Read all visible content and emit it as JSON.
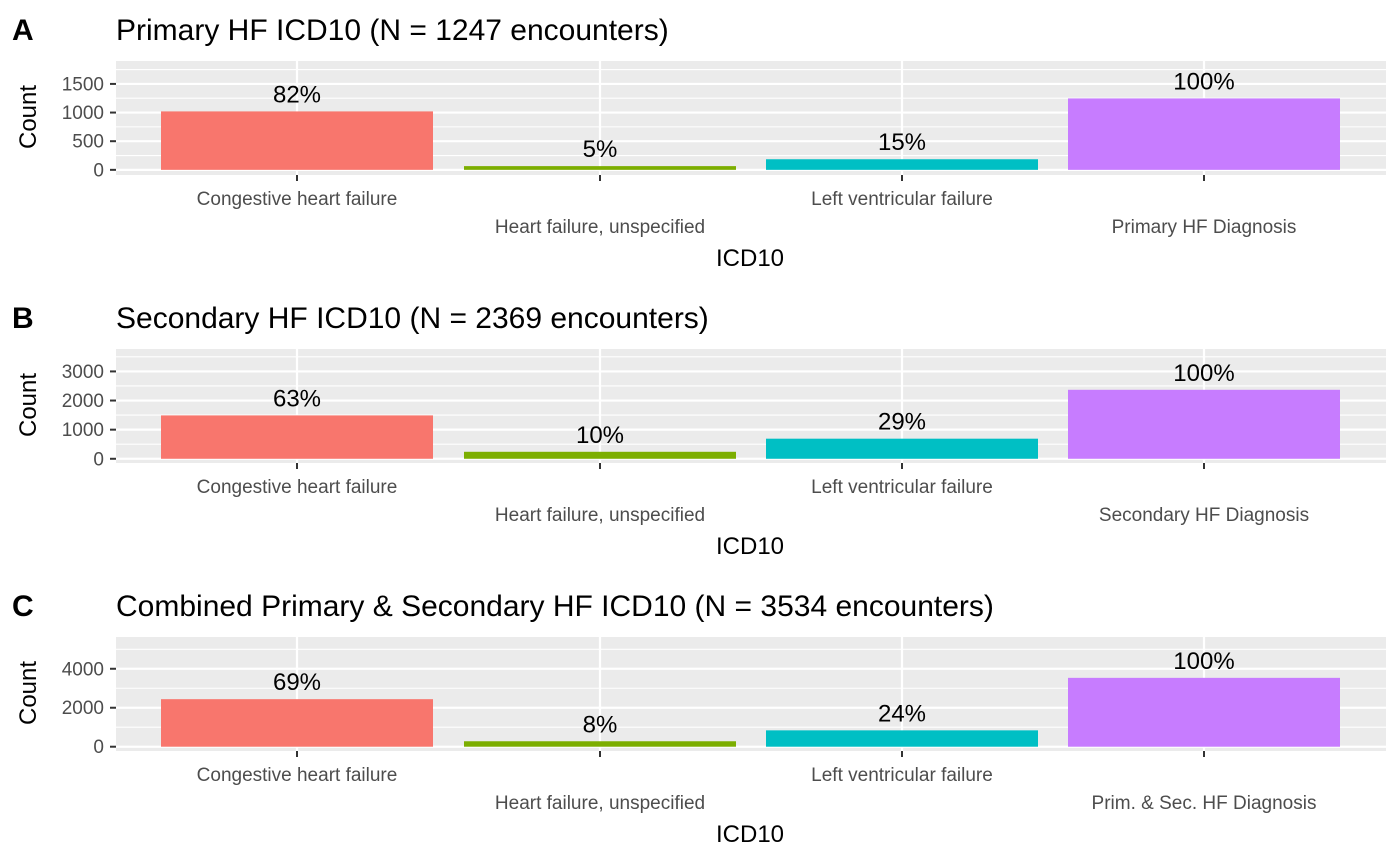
{
  "chart_data": [
    {
      "type": "bar",
      "tag": "A",
      "title": "Primary HF ICD10 (N = 1247 encounters)",
      "xlabel": "ICD10",
      "ylabel": "Count",
      "categories": [
        "Congestive heart failure",
        "Heart failure, unspecified",
        "Left ventricular failure",
        "Primary HF Diagnosis"
      ],
      "values": [
        1020,
        65,
        185,
        1247
      ],
      "labels": [
        "82%",
        "5%",
        "15%",
        "100%"
      ],
      "yticks": [
        0,
        500,
        1000,
        1500
      ],
      "ylim": [
        -90,
        1900
      ],
      "grid": true
    },
    {
      "type": "bar",
      "tag": "B",
      "title": "Secondary HF ICD10 (N = 2369 encounters)",
      "xlabel": "ICD10",
      "ylabel": "Count",
      "categories": [
        "Congestive heart failure",
        "Heart failure, unspecified",
        "Left ventricular failure",
        "Secondary HF Diagnosis"
      ],
      "values": [
        1490,
        240,
        690,
        2369
      ],
      "labels": [
        "63%",
        "10%",
        "29%",
        "100%"
      ],
      "yticks": [
        0,
        1000,
        2000,
        3000
      ],
      "ylim": [
        -145,
        3770
      ],
      "grid": true
    },
    {
      "type": "bar",
      "tag": "C",
      "title": "Combined Primary & Secondary HF ICD10 (N = 3534 encounters)",
      "xlabel": "ICD10",
      "ylabel": "Count",
      "categories": [
        "Congestive heart failure",
        "Heart failure, unspecified",
        "Left ventricular failure",
        "Prim. & Sec. HF Diagnosis"
      ],
      "values": [
        2440,
        280,
        840,
        3534
      ],
      "labels": [
        "69%",
        "8%",
        "24%",
        "100%"
      ],
      "yticks": [
        0,
        2000,
        4000
      ],
      "ylim": [
        -220,
        5630
      ],
      "grid": true
    }
  ],
  "colors": {
    "bars": [
      "#F8766D",
      "#7CAE00",
      "#00BFC4",
      "#C77CFF"
    ],
    "panel_background": "#EBEBEB",
    "grid": "#FFFFFF",
    "tick_text": "#4D4D4D"
  }
}
